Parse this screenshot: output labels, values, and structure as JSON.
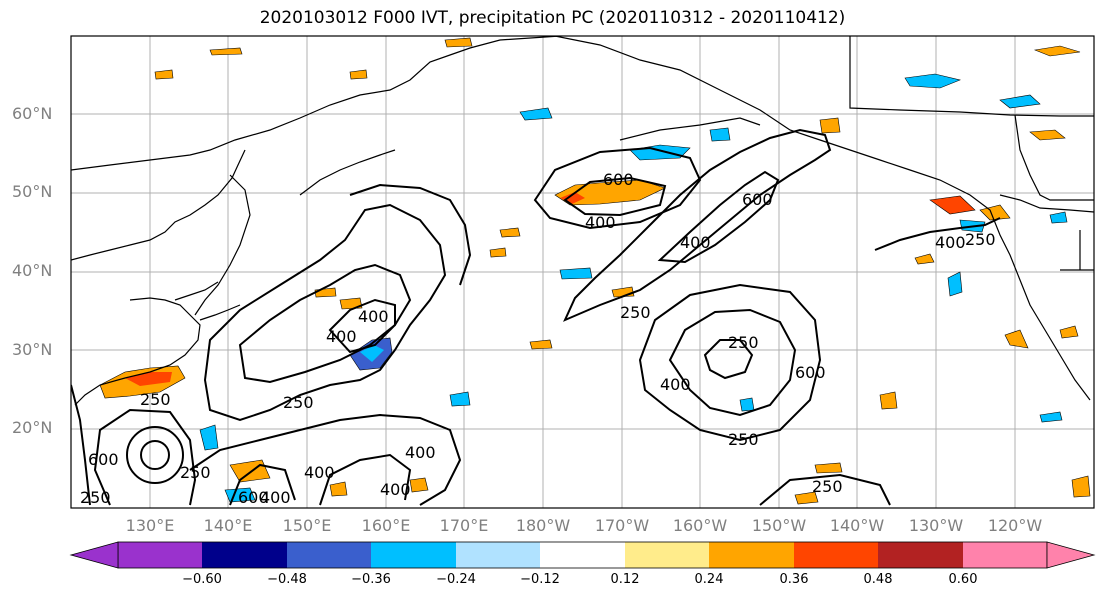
{
  "title": "2020103012 F000 IVT, precipitation PC (2020110312 - 2020110412)",
  "lat_labels": [
    "60°N",
    "50°N",
    "40°N",
    "30°N",
    "20°N"
  ],
  "lon_labels": [
    "130°E",
    "140°E",
    "150°E",
    "160°E",
    "170°E",
    "180°W",
    "170°W",
    "160°W",
    "150°W",
    "140°W",
    "130°W",
    "120°W"
  ],
  "contour_labels": {
    "c1": "400",
    "c2": "600",
    "c3": "600",
    "c4": "400",
    "c5": "400",
    "c6": "400",
    "c7": "250",
    "c8": "250",
    "c9": "400",
    "c10": "600",
    "c11": "250",
    "c12": "400",
    "c13": "250",
    "c14": "250",
    "c15": "400",
    "c16": "600",
    "c17": "250",
    "c18": "400",
    "c19": "400",
    "c20": "250",
    "c21": "400",
    "c22": "250",
    "c23": "600",
    "c24": "250"
  },
  "colorbar": {
    "ticks": [
      "−0.60",
      "−0.48",
      "−0.36",
      "−0.24",
      "−0.12",
      "0.12",
      "0.24",
      "0.36",
      "0.48",
      "0.60"
    ],
    "colors": [
      "#9a32cd",
      "#00008b",
      "#3a5fcd",
      "#00bfff",
      "#b0e2ff",
      "#ffffff",
      "#ffec8b",
      "#ffa500",
      "#ff4500",
      "#b22222",
      "#ff82ab"
    ]
  }
}
